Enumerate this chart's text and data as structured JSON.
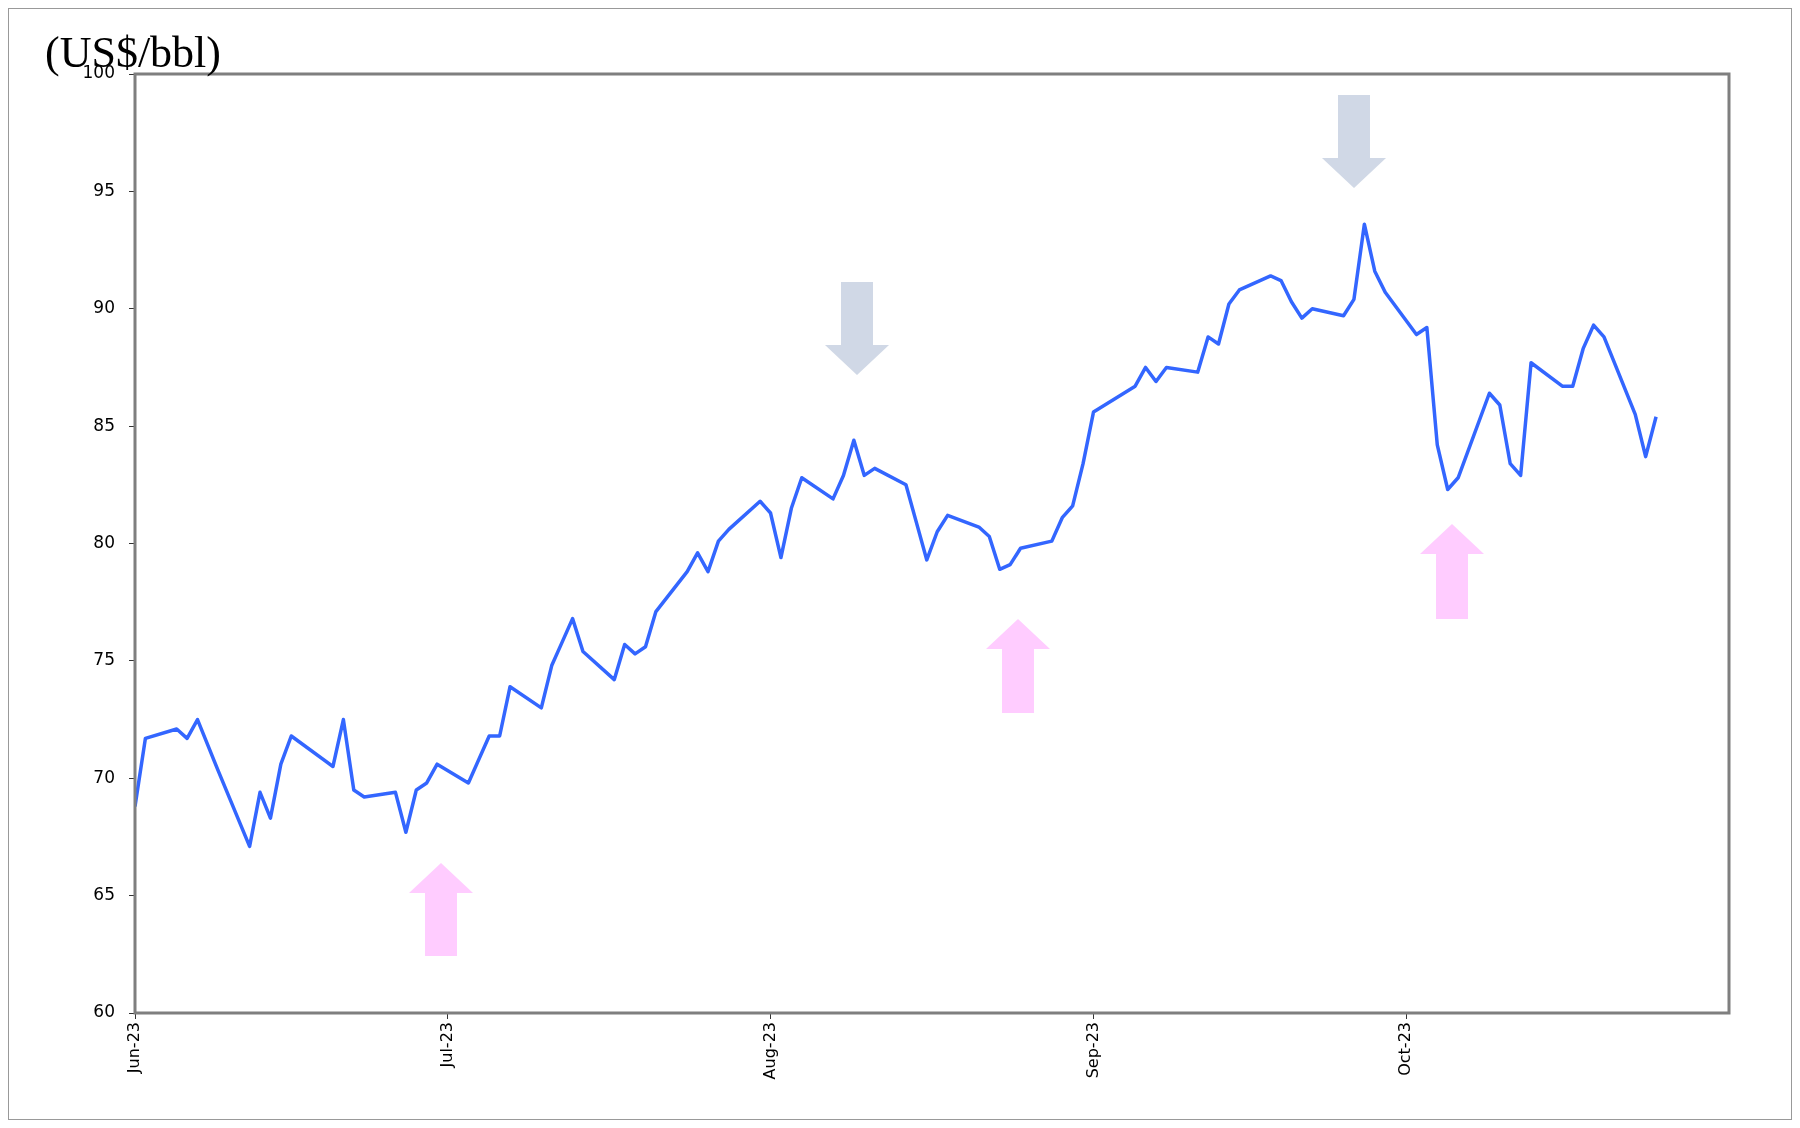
{
  "chart_data": {
    "type": "line",
    "ylabel": "(US$/bbl)",
    "xlim": [
      "2023-06-01",
      "2023-11-01"
    ],
    "xticks": [
      {
        "value": "2023-06-01",
        "label": "Jun-23"
      },
      {
        "value": "2023-07-01",
        "label": "Jul-23"
      },
      {
        "value": "2023-08-01",
        "label": "Aug-23"
      },
      {
        "value": "2023-09-01",
        "label": "Sep-23"
      },
      {
        "value": "2023-10-01",
        "label": "Oct-23"
      }
    ],
    "ylim": [
      60,
      100
    ],
    "yticks": [
      60,
      65,
      70,
      75,
      80,
      85,
      90,
      95,
      100
    ],
    "grid": false,
    "legend": false,
    "marker": "none",
    "line_style": "solid",
    "x": [
      "2023-06-01",
      "2023-06-02",
      "2023-06-05",
      "2023-06-06",
      "2023-06-07",
      "2023-06-08",
      "2023-06-09",
      "2023-06-12",
      "2023-06-13",
      "2023-06-14",
      "2023-06-15",
      "2023-06-16",
      "2023-06-20",
      "2023-06-21",
      "2023-06-22",
      "2023-06-23",
      "2023-06-26",
      "2023-06-27",
      "2023-06-28",
      "2023-06-29",
      "2023-06-30",
      "2023-07-03",
      "2023-07-05",
      "2023-07-06",
      "2023-07-07",
      "2023-07-10",
      "2023-07-11",
      "2023-07-12",
      "2023-07-13",
      "2023-07-14",
      "2023-07-17",
      "2023-07-18",
      "2023-07-19",
      "2023-07-20",
      "2023-07-21",
      "2023-07-24",
      "2023-07-25",
      "2023-07-26",
      "2023-07-27",
      "2023-07-28",
      "2023-07-31",
      "2023-08-01",
      "2023-08-02",
      "2023-08-03",
      "2023-08-04",
      "2023-08-07",
      "2023-08-08",
      "2023-08-09",
      "2023-08-10",
      "2023-08-11",
      "2023-08-14",
      "2023-08-15",
      "2023-08-16",
      "2023-08-17",
      "2023-08-18",
      "2023-08-21",
      "2023-08-22",
      "2023-08-23",
      "2023-08-24",
      "2023-08-25",
      "2023-08-28",
      "2023-08-29",
      "2023-08-30",
      "2023-08-31",
      "2023-09-01",
      "2023-09-05",
      "2023-09-06",
      "2023-09-07",
      "2023-09-08",
      "2023-09-11",
      "2023-09-12",
      "2023-09-13",
      "2023-09-14",
      "2023-09-15",
      "2023-09-18",
      "2023-09-19",
      "2023-09-20",
      "2023-09-21",
      "2023-09-22",
      "2023-09-25",
      "2023-09-26",
      "2023-09-27",
      "2023-09-28",
      "2023-09-29",
      "2023-10-02",
      "2023-10-03",
      "2023-10-04",
      "2023-10-05",
      "2023-10-06",
      "2023-10-09",
      "2023-10-10",
      "2023-10-11",
      "2023-10-12",
      "2023-10-13",
      "2023-10-16",
      "2023-10-17",
      "2023-10-18",
      "2023-10-19",
      "2023-10-20",
      "2023-10-23",
      "2023-10-24",
      "2023-10-25"
    ],
    "series": [
      {
        "color": "#3366ff",
        "values": [
          68.8,
          71.7,
          72.1,
          71.7,
          72.5,
          71.4,
          70.3,
          67.1,
          69.4,
          68.3,
          70.6,
          71.8,
          70.5,
          72.5,
          69.5,
          69.2,
          69.4,
          67.7,
          69.5,
          69.8,
          70.6,
          69.8,
          71.8,
          71.8,
          73.9,
          73.0,
          74.8,
          75.8,
          76.8,
          75.4,
          74.2,
          75.7,
          75.3,
          75.6,
          77.1,
          78.8,
          79.6,
          78.8,
          80.1,
          80.6,
          81.8,
          81.3,
          79.4,
          81.5,
          82.8,
          81.9,
          82.9,
          84.4,
          82.9,
          83.2,
          82.5,
          80.9,
          79.3,
          80.5,
          81.2,
          80.7,
          80.3,
          78.9,
          79.1,
          79.8,
          80.1,
          81.1,
          81.6,
          83.4,
          85.6,
          86.7,
          87.5,
          86.9,
          87.5,
          87.3,
          88.8,
          88.5,
          90.2,
          90.8,
          91.4,
          91.2,
          90.3,
          89.6,
          90.0,
          89.7,
          90.4,
          93.6,
          91.6,
          90.7,
          88.9,
          89.2,
          84.2,
          82.3,
          82.8,
          86.4,
          85.9,
          83.4,
          82.9,
          87.7,
          86.7,
          86.7,
          88.3,
          89.3,
          88.8,
          85.5,
          83.7,
          85.4
        ]
      }
    ]
  }
}
